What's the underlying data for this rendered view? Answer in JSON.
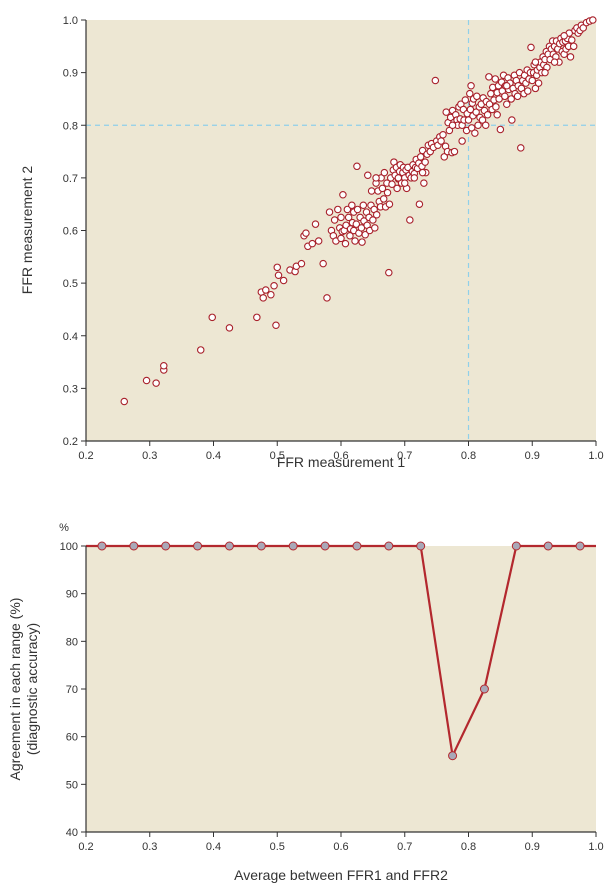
{
  "chart_data": [
    {
      "type": "scatter",
      "title": "",
      "xlabel": "FFR measurement 1",
      "ylabel": "FFR measurement 2",
      "xlim": [
        0.2,
        1.0
      ],
      "ylim": [
        0.2,
        1.0
      ],
      "x_ticks": [
        "0.2",
        "0.3",
        "0.4",
        "0.5",
        "0.6",
        "0.7",
        "0.8",
        "0.9",
        "1.0"
      ],
      "y_ticks": [
        "0.2",
        "0.3",
        "0.4",
        "0.5",
        "0.6",
        "0.7",
        "0.8",
        "0.9",
        "1.0"
      ],
      "reference_lines": {
        "x": 0.8,
        "y": 0.8
      },
      "marker": {
        "fill": "#ffffff",
        "stroke": "#a8202a"
      },
      "points": [
        [
          0.26,
          0.275
        ],
        [
          0.295,
          0.315
        ],
        [
          0.31,
          0.31
        ],
        [
          0.322,
          0.335
        ],
        [
          0.322,
          0.343
        ],
        [
          0.38,
          0.373
        ],
        [
          0.398,
          0.435
        ],
        [
          0.425,
          0.415
        ],
        [
          0.468,
          0.435
        ],
        [
          0.475,
          0.483
        ],
        [
          0.478,
          0.472
        ],
        [
          0.482,
          0.487
        ],
        [
          0.49,
          0.478
        ],
        [
          0.495,
          0.495
        ],
        [
          0.498,
          0.42
        ],
        [
          0.5,
          0.53
        ],
        [
          0.502,
          0.515
        ],
        [
          0.51,
          0.505
        ],
        [
          0.52,
          0.525
        ],
        [
          0.528,
          0.522
        ],
        [
          0.53,
          0.532
        ],
        [
          0.538,
          0.537
        ],
        [
          0.542,
          0.59
        ],
        [
          0.545,
          0.595
        ],
        [
          0.548,
          0.57
        ],
        [
          0.555,
          0.575
        ],
        [
          0.56,
          0.612
        ],
        [
          0.565,
          0.58
        ],
        [
          0.572,
          0.537
        ],
        [
          0.578,
          0.472
        ],
        [
          0.582,
          0.635
        ],
        [
          0.585,
          0.6
        ],
        [
          0.588,
          0.59
        ],
        [
          0.59,
          0.62
        ],
        [
          0.592,
          0.58
        ],
        [
          0.595,
          0.64
        ],
        [
          0.598,
          0.605
        ],
        [
          0.6,
          0.625
        ],
        [
          0.6,
          0.585
        ],
        [
          0.602,
          0.598
        ],
        [
          0.603,
          0.668
        ],
        [
          0.605,
          0.6
        ],
        [
          0.607,
          0.575
        ],
        [
          0.608,
          0.61
        ],
        [
          0.61,
          0.64
        ],
        [
          0.612,
          0.625
        ],
        [
          0.614,
          0.59
        ],
        [
          0.615,
          0.603
        ],
        [
          0.617,
          0.648
        ],
        [
          0.618,
          0.615
        ],
        [
          0.62,
          0.635
        ],
        [
          0.62,
          0.6
        ],
        [
          0.622,
          0.58
        ],
        [
          0.624,
          0.612
        ],
        [
          0.625,
          0.722
        ],
        [
          0.626,
          0.64
        ],
        [
          0.628,
          0.595
        ],
        [
          0.63,
          0.625
        ],
        [
          0.632,
          0.605
        ],
        [
          0.633,
          0.578
        ],
        [
          0.635,
          0.648
        ],
        [
          0.636,
          0.618
        ],
        [
          0.638,
          0.592
        ],
        [
          0.64,
          0.635
        ],
        [
          0.641,
          0.61
        ],
        [
          0.642,
          0.705
        ],
        [
          0.644,
          0.625
        ],
        [
          0.645,
          0.6
        ],
        [
          0.647,
          0.648
        ],
        [
          0.648,
          0.675
        ],
        [
          0.65,
          0.62
        ],
        [
          0.652,
          0.64
        ],
        [
          0.653,
          0.605
        ],
        [
          0.655,
          0.69
        ],
        [
          0.656,
          0.63
        ],
        [
          0.658,
          0.675
        ],
        [
          0.66,
          0.655
        ],
        [
          0.662,
          0.645
        ],
        [
          0.663,
          0.7
        ],
        [
          0.665,
          0.68
        ],
        [
          0.667,
          0.66
        ],
        [
          0.668,
          0.71
        ],
        [
          0.67,
          0.645
        ],
        [
          0.672,
          0.69
        ],
        [
          0.673,
          0.672
        ],
        [
          0.675,
          0.52
        ],
        [
          0.676,
          0.65
        ],
        [
          0.678,
          0.7
        ],
        [
          0.68,
          0.688
        ],
        [
          0.682,
          0.715
        ],
        [
          0.683,
          0.73
        ],
        [
          0.685,
          0.705
        ],
        [
          0.687,
          0.72
        ],
        [
          0.688,
          0.68
        ],
        [
          0.69,
          0.698
        ],
        [
          0.692,
          0.712
        ],
        [
          0.693,
          0.725
        ],
        [
          0.695,
          0.69
        ],
        [
          0.697,
          0.71
        ],
        [
          0.698,
          0.72
        ],
        [
          0.7,
          0.7
        ],
        [
          0.702,
          0.715
        ],
        [
          0.703,
          0.68
        ],
        [
          0.705,
          0.72
        ],
        [
          0.707,
          0.705
        ],
        [
          0.708,
          0.62
        ],
        [
          0.71,
          0.7
        ],
        [
          0.712,
          0.712
        ],
        [
          0.713,
          0.725
        ],
        [
          0.715,
          0.708
        ],
        [
          0.717,
          0.72
        ],
        [
          0.718,
          0.735
        ],
        [
          0.72,
          0.718
        ],
        [
          0.722,
          0.728
        ],
        [
          0.723,
          0.65
        ],
        [
          0.725,
          0.74
        ],
        [
          0.727,
          0.722
        ],
        [
          0.728,
          0.752
        ],
        [
          0.73,
          0.69
        ],
        [
          0.732,
          0.73
        ],
        [
          0.733,
          0.71
        ],
        [
          0.735,
          0.745
        ],
        [
          0.737,
          0.762
        ],
        [
          0.74,
          0.75
        ],
        [
          0.742,
          0.765
        ],
        [
          0.745,
          0.758
        ],
        [
          0.748,
          0.885
        ],
        [
          0.75,
          0.77
        ],
        [
          0.752,
          0.762
        ],
        [
          0.755,
          0.778
        ],
        [
          0.757,
          0.77
        ],
        [
          0.76,
          0.782
        ],
        [
          0.762,
          0.74
        ],
        [
          0.764,
          0.76
        ],
        [
          0.765,
          0.825
        ],
        [
          0.767,
          0.75
        ],
        [
          0.768,
          0.805
        ],
        [
          0.77,
          0.79
        ],
        [
          0.772,
          0.815
        ],
        [
          0.774,
          0.748
        ],
        [
          0.775,
          0.828
        ],
        [
          0.777,
          0.805
        ],
        [
          0.778,
          0.75
        ],
        [
          0.78,
          0.82
        ],
        [
          0.782,
          0.81
        ],
        [
          0.783,
          0.8
        ],
        [
          0.785,
          0.835
        ],
        [
          0.787,
          0.812
        ],
        [
          0.788,
          0.84
        ],
        [
          0.79,
          0.8
        ],
        [
          0.792,
          0.83
        ],
        [
          0.793,
          0.81
        ],
        [
          0.795,
          0.848
        ],
        [
          0.797,
          0.79
        ],
        [
          0.798,
          0.822
        ],
        [
          0.8,
          0.81
        ],
        [
          0.802,
          0.86
        ],
        [
          0.803,
          0.83
        ],
        [
          0.804,
          0.875
        ],
        [
          0.805,
          0.795
        ],
        [
          0.806,
          0.842
        ],
        [
          0.807,
          0.818
        ],
        [
          0.808,
          0.85
        ],
        [
          0.81,
          0.785
        ],
        [
          0.812,
          0.825
        ],
        [
          0.813,
          0.855
        ],
        [
          0.815,
          0.8
        ],
        [
          0.817,
          0.835
        ],
        [
          0.818,
          0.815
        ],
        [
          0.82,
          0.84
        ],
        [
          0.822,
          0.81
        ],
        [
          0.823,
          0.852
        ],
        [
          0.825,
          0.828
        ],
        [
          0.827,
          0.8
        ],
        [
          0.828,
          0.845
        ],
        [
          0.83,
          0.82
        ],
        [
          0.832,
          0.892
        ],
        [
          0.833,
          0.84
        ],
        [
          0.835,
          0.86
        ],
        [
          0.837,
          0.83
        ],
        [
          0.838,
          0.872
        ],
        [
          0.84,
          0.848
        ],
        [
          0.842,
          0.888
        ],
        [
          0.843,
          0.835
        ],
        [
          0.845,
          0.862
        ],
        [
          0.847,
          0.875
        ],
        [
          0.848,
          0.85
        ],
        [
          0.85,
          0.792
        ],
        [
          0.852,
          0.882
        ],
        [
          0.853,
          0.865
        ],
        [
          0.855,
          0.895
        ],
        [
          0.857,
          0.855
        ],
        [
          0.858,
          0.875
        ],
        [
          0.86,
          0.84
        ],
        [
          0.862,
          0.89
        ],
        [
          0.863,
          0.868
        ],
        [
          0.865,
          0.88
        ],
        [
          0.867,
          0.85
        ],
        [
          0.868,
          0.81
        ],
        [
          0.87,
          0.87
        ],
        [
          0.872,
          0.895
        ],
        [
          0.873,
          0.86
        ],
        [
          0.875,
          0.885
        ],
        [
          0.877,
          0.855
        ],
        [
          0.878,
          0.875
        ],
        [
          0.88,
          0.9
        ],
        [
          0.882,
          0.757
        ],
        [
          0.883,
          0.87
        ],
        [
          0.885,
          0.885
        ],
        [
          0.887,
          0.86
        ],
        [
          0.888,
          0.895
        ],
        [
          0.89,
          0.88
        ],
        [
          0.892,
          0.905
        ],
        [
          0.893,
          0.865
        ],
        [
          0.895,
          0.888
        ],
        [
          0.897,
          0.9
        ],
        [
          0.898,
          0.948
        ],
        [
          0.9,
          0.885
        ],
        [
          0.902,
          0.9
        ],
        [
          0.903,
          0.915
        ],
        [
          0.905,
          0.87
        ],
        [
          0.907,
          0.895
        ],
        [
          0.908,
          0.905
        ],
        [
          0.91,
          0.88
        ],
        [
          0.912,
          0.91
        ],
        [
          0.913,
          0.92
        ],
        [
          0.915,
          0.9
        ],
        [
          0.917,
          0.93
        ],
        [
          0.918,
          0.915
        ],
        [
          0.92,
          0.925
        ],
        [
          0.922,
          0.94
        ],
        [
          0.923,
          0.91
        ],
        [
          0.925,
          0.935
        ],
        [
          0.927,
          0.95
        ],
        [
          0.928,
          0.925
        ],
        [
          0.93,
          0.945
        ],
        [
          0.932,
          0.96
        ],
        [
          0.933,
          0.935
        ],
        [
          0.935,
          0.95
        ],
        [
          0.937,
          0.93
        ],
        [
          0.938,
          0.96
        ],
        [
          0.94,
          0.945
        ],
        [
          0.942,
          0.92
        ],
        [
          0.943,
          0.955
        ],
        [
          0.945,
          0.965
        ],
        [
          0.947,
          0.94
        ],
        [
          0.948,
          0.958
        ],
        [
          0.95,
          0.935
        ],
        [
          0.952,
          0.96
        ],
        [
          0.953,
          0.945
        ],
        [
          0.955,
          0.965
        ],
        [
          0.957,
          0.95
        ],
        [
          0.958,
          0.975
        ],
        [
          0.96,
          0.93
        ],
        [
          0.962,
          0.962
        ],
        [
          0.965,
          0.95
        ],
        [
          0.967,
          0.98
        ],
        [
          0.97,
          0.985
        ],
        [
          0.972,
          0.975
        ],
        [
          0.975,
          0.98
        ],
        [
          0.977,
          0.99
        ],
        [
          0.98,
          0.985
        ],
        [
          0.985,
          0.995
        ],
        [
          0.99,
          0.998
        ],
        [
          0.995,
          1.0
        ],
        [
          0.715,
          0.7
        ],
        [
          0.728,
          0.71
        ],
        [
          0.655,
          0.7
        ],
        [
          0.845,
          0.82
        ],
        [
          0.86,
          0.875
        ],
        [
          0.905,
          0.92
        ],
        [
          0.92,
          0.9
        ],
        [
          0.935,
          0.92
        ],
        [
          0.95,
          0.97
        ],
        [
          0.79,
          0.77
        ],
        [
          0.775,
          0.8
        ],
        [
          0.7,
          0.69
        ],
        [
          0.69,
          0.7
        ]
      ]
    },
    {
      "type": "line",
      "title": "",
      "xlabel": "Average between FFR1 and FFR2",
      "ylabel": "Agreement in each range (%) (diagnostic accuracy)",
      "ylabel_lines": [
        "Agreement in each range (%)",
        "(diagnostic accuracy)"
      ],
      "unit_label": "%",
      "xlim": [
        0.2,
        1.0
      ],
      "ylim": [
        40,
        100
      ],
      "x_ticks": [
        "0.2",
        "0.3",
        "0.4",
        "0.5",
        "0.6",
        "0.7",
        "0.8",
        "0.9",
        "1.0"
      ],
      "y_ticks": [
        "40",
        "50",
        "60",
        "70",
        "80",
        "90",
        "100"
      ],
      "line_color": "#b3282e",
      "marker_color": "#a9a8b8",
      "x": [
        0.225,
        0.275,
        0.325,
        0.375,
        0.425,
        0.475,
        0.525,
        0.575,
        0.625,
        0.675,
        0.725,
        0.775,
        0.825,
        0.875,
        0.925,
        0.975
      ],
      "y": [
        100,
        100,
        100,
        100,
        100,
        100,
        100,
        100,
        100,
        100,
        100,
        56,
        70,
        100,
        100,
        100
      ]
    }
  ]
}
